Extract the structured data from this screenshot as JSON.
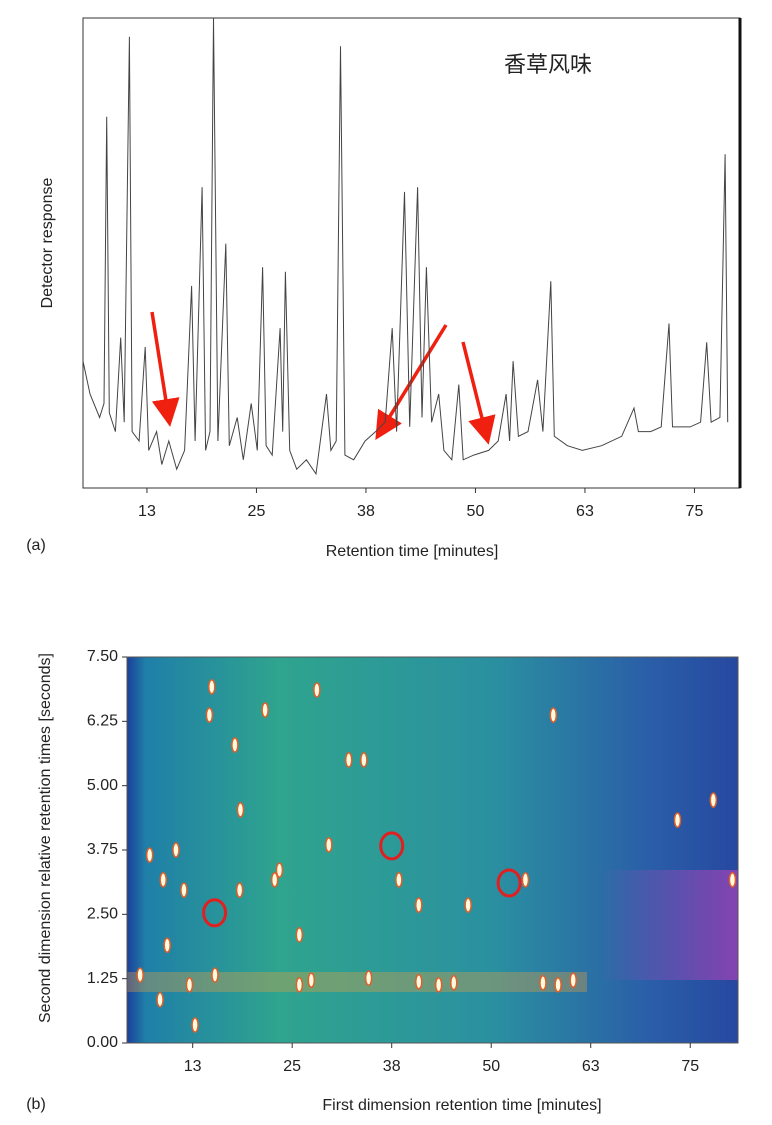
{
  "chart_data": [
    {
      "type": "line",
      "annotation": "香草风味",
      "xlabel": "Retention time [minutes]",
      "ylabel": "Detector response",
      "panel": "(a)",
      "color": "#444444",
      "xlim": [
        5.2,
        80.2
      ],
      "ylim": [
        0,
        100
      ],
      "xticks": [
        {
          "value": 12.5,
          "label": "13"
        },
        25,
        {
          "value": 37.5,
          "label": "38"
        },
        50,
        {
          "value": 62.5,
          "label": "63"
        },
        75
      ],
      "x": [
        5.2,
        6.0,
        7.1,
        7.6,
        7.9,
        8.2,
        8.9,
        9.5,
        9.9,
        10.5,
        10.8,
        11.6,
        12.3,
        12.7,
        13.6,
        14.2,
        15.0,
        15.9,
        16.8,
        17.6,
        18.0,
        18.8,
        19.2,
        19.7,
        20.1,
        20.6,
        21.5,
        21.9,
        22.8,
        23.5,
        24.4,
        25.1,
        25.7,
        26.1,
        26.8,
        27.7,
        28.0,
        28.3,
        28.8,
        29.6,
        30.7,
        31.8,
        33.0,
        33.5,
        34.1,
        34.6,
        35.1,
        36.1,
        37.4,
        38.6,
        39.7,
        40.5,
        41.0,
        41.9,
        42.5,
        43.4,
        43.9,
        44.4,
        45.0,
        45.8,
        46.4,
        47.3,
        48.1,
        48.6,
        49.8,
        51.5,
        52.6,
        53.5,
        53.9,
        54.3,
        54.9,
        56.0,
        57.1,
        57.7,
        58.6,
        59.0,
        60.5,
        62.2,
        64.4,
        66.7,
        68.1,
        68.6,
        70.0,
        71.2,
        72.1,
        72.5,
        74.5,
        75.7,
        76.4,
        76.9,
        77.9,
        78.5,
        78.8
      ],
      "y": [
        27,
        20,
        15,
        18,
        79,
        16,
        12,
        32,
        14,
        96,
        12,
        10,
        30,
        8,
        12,
        5,
        10,
        4,
        8,
        43,
        10,
        64,
        8,
        12,
        100,
        10,
        52,
        9,
        15,
        6,
        18,
        8,
        47,
        9,
        7,
        34,
        12,
        46,
        8,
        4,
        6,
        3,
        20,
        8,
        10,
        94,
        7,
        6,
        10,
        12,
        14,
        34,
        12,
        63,
        13,
        64,
        15,
        47,
        14,
        20,
        8,
        6,
        22,
        6,
        7,
        8,
        10,
        20,
        10,
        27,
        11,
        12,
        23,
        12,
        44,
        11,
        9,
        8,
        9,
        11,
        17,
        12,
        12,
        13,
        35,
        13,
        13,
        14,
        31,
        14,
        15,
        71,
        14
      ]
    },
    {
      "type": "scatter",
      "xlabel": "First dimension retention time [minutes]",
      "ylabel": "Second dimension relative retention times [seconds]",
      "panel": "(b)",
      "xlim": [
        4.25,
        81
      ],
      "ylim": [
        0,
        7.5
      ],
      "xticks": [
        {
          "value": 12.5,
          "label": "13"
        },
        25,
        {
          "value": 37.5,
          "label": "38"
        },
        50,
        {
          "value": 62.5,
          "label": "63"
        },
        75
      ],
      "yticks": [
        {
          "value": 0,
          "label": "0.00"
        },
        {
          "value": 1.25,
          "label": "1.25"
        },
        {
          "value": 2.5,
          "label": "2.50"
        },
        {
          "value": 3.75,
          "label": "3.75"
        },
        {
          "value": 5,
          "label": "5.00"
        },
        {
          "value": 6.25,
          "label": "6.25"
        },
        {
          "value": 7.5,
          "label": "7.50"
        }
      ],
      "spots": {
        "color": "#fffbe0",
        "x": [
          7.1,
          8.8,
          10.4,
          11.4,
          14.6,
          14.9,
          17.8,
          18.5,
          21.6,
          18.4,
          22.8,
          25.9,
          28.1,
          32.1,
          34.0,
          38.4,
          40.9,
          47.1,
          54.3,
          57.8,
          73.4,
          77.9,
          80.3,
          12.1,
          15.3,
          25.9,
          27.4,
          34.6,
          40.9,
          43.4,
          45.3,
          56.5,
          58.4,
          60.3,
          8.4,
          5.9,
          9.3,
          12.8,
          23.4,
          29.6
        ],
        "y": [
          3.65,
          3.17,
          3.75,
          2.97,
          6.37,
          6.92,
          5.79,
          4.53,
          6.47,
          2.97,
          3.17,
          2.1,
          6.86,
          5.5,
          5.5,
          3.17,
          2.68,
          2.68,
          3.17,
          6.37,
          4.33,
          4.72,
          3.17,
          1.13,
          1.32,
          1.13,
          1.22,
          1.26,
          1.19,
          1.13,
          1.17,
          1.17,
          1.13,
          1.22,
          0.84,
          1.32,
          1.9,
          0.35,
          3.36,
          3.85
        ]
      },
      "circles": {
        "color": "#e02020",
        "x": [
          15.25,
          37.5,
          52.25
        ],
        "y": [
          2.53,
          3.83,
          3.11
        ]
      }
    }
  ]
}
